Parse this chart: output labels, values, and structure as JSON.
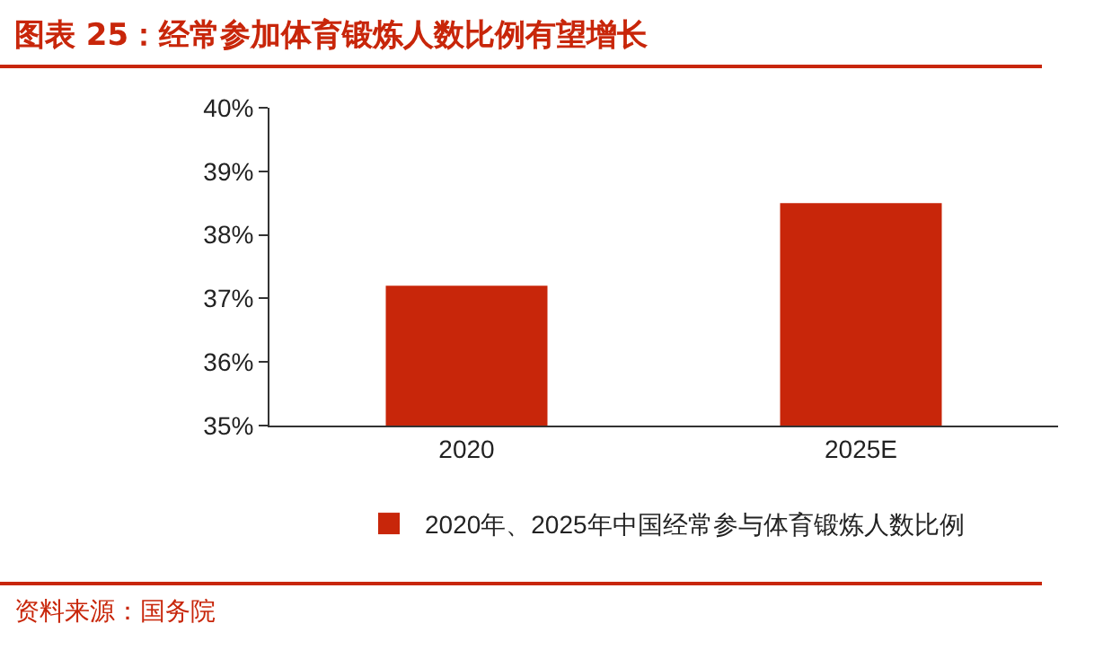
{
  "chart_data": {
    "type": "bar",
    "title": "图表 25：经常参加体育锻炼人数比例有望增长",
    "categories": [
      "2020",
      "2025E"
    ],
    "series": [
      {
        "name": "2020年、2025年中国经常参与体育锻炼人数比例",
        "color": "#c8260a",
        "values": [
          37.2,
          38.5
        ]
      }
    ],
    "ylim": [
      35,
      40
    ],
    "yticks": [
      {
        "value": 35,
        "label": "35%"
      },
      {
        "value": 36,
        "label": "36%"
      },
      {
        "value": 37,
        "label": "37%"
      },
      {
        "value": 38,
        "label": "38%"
      },
      {
        "value": 39,
        "label": "39%"
      },
      {
        "value": 40,
        "label": "40%"
      }
    ],
    "grid": false,
    "legend": "bottom",
    "annotations": [
      "资料来源：国务院"
    ]
  }
}
